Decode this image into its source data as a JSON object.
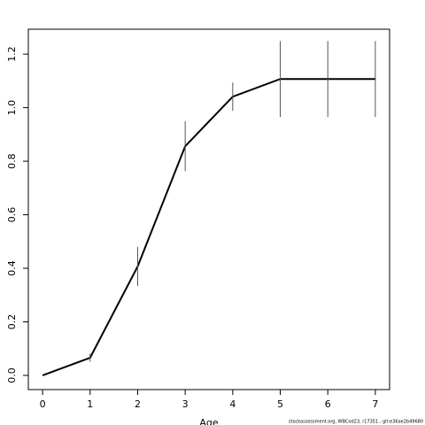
{
  "chart_data": {
    "type": "line",
    "x_label": "Age",
    "x": [
      0,
      1,
      2,
      3,
      4,
      5,
      6,
      7
    ],
    "series": [
      {
        "color": "#000000",
        "values": [
          0.0,
          0.066,
          0.407,
          0.856,
          1.041,
          1.107,
          1.107,
          1.107
        ],
        "errors": [
          null,
          0.015,
          0.073,
          0.093,
          0.053,
          0.142,
          0.142,
          0.142
        ]
      }
    ],
    "xlim": [
      -0.3,
      7.3
    ],
    "ylim": [
      -0.053,
      1.293
    ],
    "xticks": [
      0,
      1,
      2,
      3,
      4,
      5,
      6,
      7
    ],
    "yticks": [
      {
        "value": 0,
        "label": "0.0"
      },
      0.2,
      0.4,
      0.6,
      0.8,
      {
        "value": 1,
        "label": "1.0"
      },
      1.2
    ],
    "footnote": "stockassessment.org, WBCod23, r17351 , git:e36ae2b49680"
  }
}
